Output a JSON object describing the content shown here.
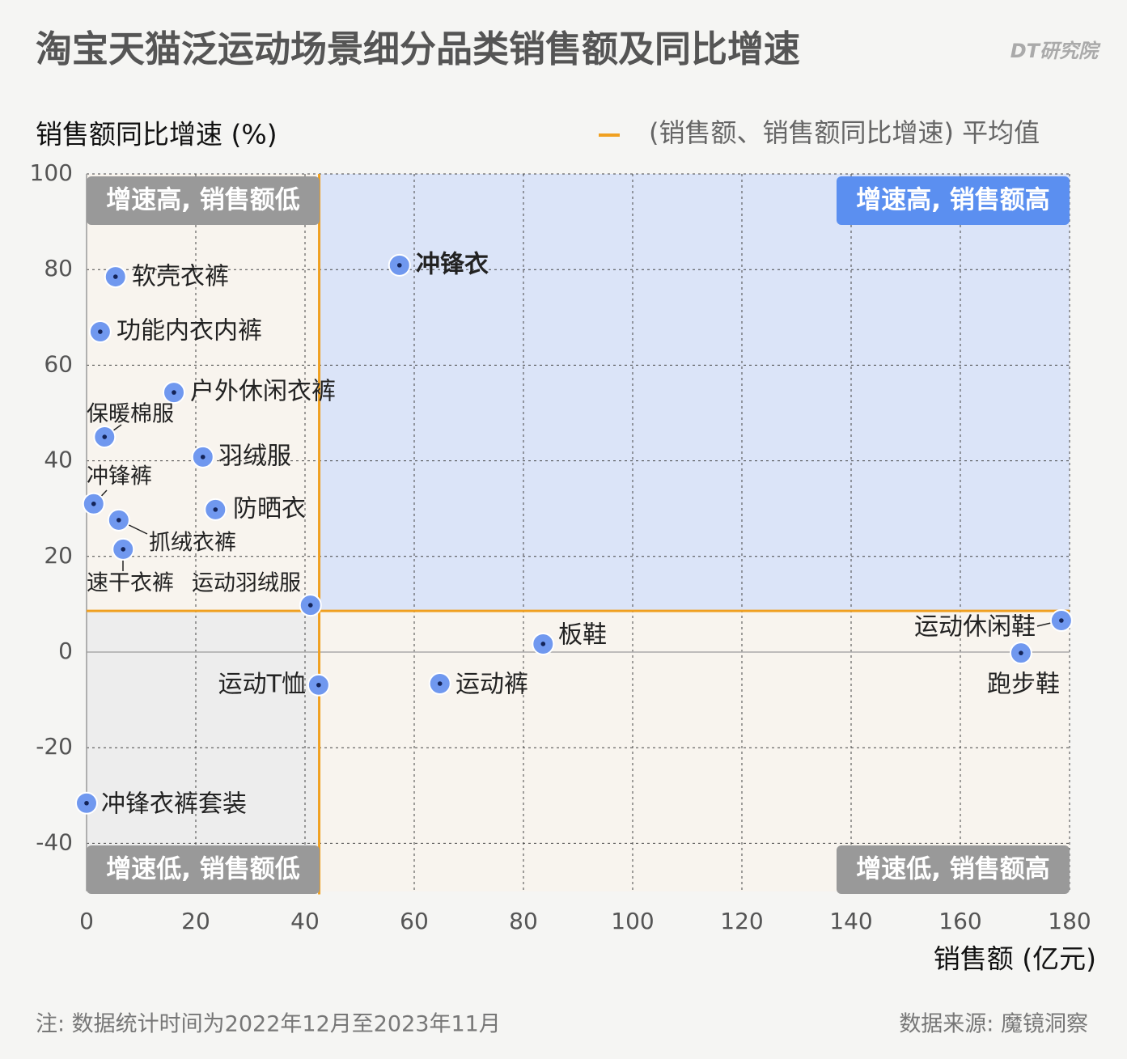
{
  "chart_data": {
    "type": "scatter",
    "title": "淘宝天猫泛运动场景细分品类销售额及同比增速",
    "brand": "DT研究院",
    "y_label": "销售额同比增速 (%)",
    "x_label": "销售额 (亿元)",
    "legend": "(销售额、销售额同比增速) 平均值",
    "mean_color": "#f0a020",
    "mean_x": 42.6,
    "mean_y": 8.6,
    "quadrants": {
      "top_left": "增速高, 销售额低",
      "top_right": "增速高, 销售额高",
      "bottom_left": "增速低, 销售额低",
      "bottom_right": "增速低, 销售额高"
    },
    "labels": [
      "冲锋衣",
      "软壳衣裤",
      "功能内衣内裤",
      "户外休闲衣裤",
      "保暖棉服",
      "羽绒服",
      "冲锋裤",
      "防晒衣",
      "抓绒衣裤",
      "速干衣裤",
      "运动羽绒服",
      "运动T恤",
      "运动裤",
      "板鞋",
      "运动休闲鞋",
      "跑步鞋",
      "冲锋衣裤套装"
    ],
    "x": [
      57.3,
      5.3,
      2.5,
      16,
      3.3,
      21.3,
      1.3,
      23.6,
      5.9,
      6.7,
      41,
      42.5,
      64.7,
      83.6,
      178.5,
      171.1,
      0
    ],
    "values": [
      80.9,
      78.5,
      67,
      54.3,
      45,
      40.8,
      31,
      29.8,
      27.6,
      21.5,
      9.8,
      -6.9,
      -6.6,
      1.7,
      6.6,
      -0.2,
      -31.6
    ],
    "color": "#7098ef",
    "xlim": [
      0,
      180
    ],
    "ylim": [
      -50,
      100
    ],
    "xticks": [
      0,
      20,
      40,
      60,
      80,
      100,
      120,
      140,
      160,
      180
    ],
    "yticks": [
      -40,
      -20,
      0,
      20,
      40,
      60,
      80,
      100
    ],
    "grid": true,
    "note": "注: 数据统计时间为2022年12月至2023年11月",
    "source": "数据来源: 魔镜洞察"
  }
}
